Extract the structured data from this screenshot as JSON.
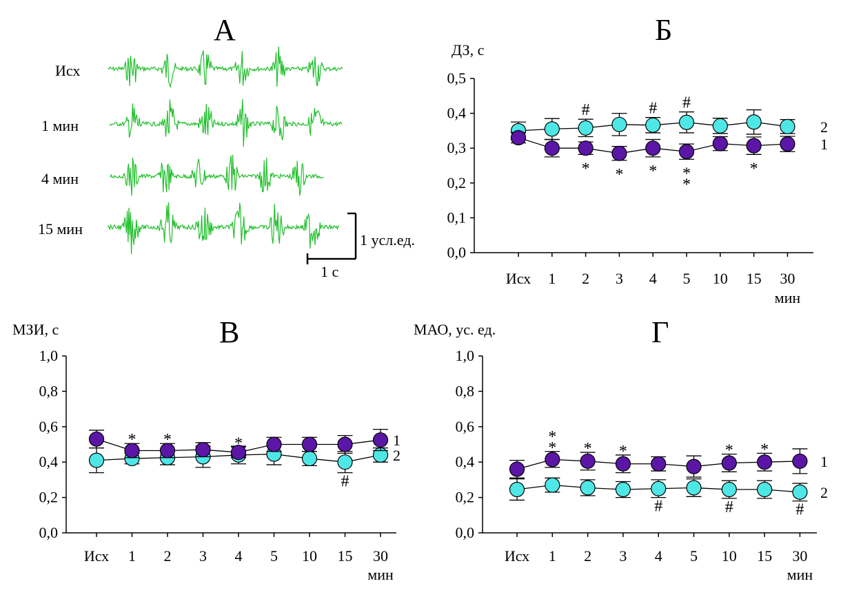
{
  "figure": {
    "panelA": {
      "letter": "А",
      "traces": [
        {
          "label": "Исх",
          "bursts": 6
        },
        {
          "label": "1 мин",
          "bursts": 6
        },
        {
          "label": "4 мин",
          "bursts": 6
        },
        {
          "label": "15 мин",
          "bursts": 6
        }
      ],
      "scale_y_label": "1 усл.ед.",
      "scale_x_label": "1 с",
      "trace_color": "#1fbf2a"
    }
  },
  "colors": {
    "series1": "#5b16a6",
    "series2": "#4fe6e6",
    "line": "#000000"
  },
  "chart_data": [
    {
      "id": "B",
      "letter": "Б",
      "type": "line",
      "ylabel": "ДЗ, с",
      "yticks": [
        "0,0",
        "0,1",
        "0,2",
        "0,3",
        "0,4",
        "0,5"
      ],
      "ylim": [
        0,
        0.5
      ],
      "categories": [
        "Исх",
        "1",
        "2",
        "3",
        "4",
        "5",
        "10",
        "15",
        "30"
      ],
      "xunit": "мин",
      "series": [
        {
          "name": "1",
          "values": [
            0.33,
            0.3,
            0.3,
            0.285,
            0.3,
            0.29,
            0.313,
            0.307,
            0.312
          ],
          "errors": [
            0.015,
            0.025,
            0.018,
            0.02,
            0.025,
            0.022,
            0.02,
            0.025,
            0.022
          ],
          "marks": [
            "",
            "",
            "*",
            "*",
            "*",
            "*\n*",
            "",
            "*",
            ""
          ],
          "mark_pos": "below"
        },
        {
          "name": "2",
          "values": [
            0.35,
            0.355,
            0.358,
            0.368,
            0.366,
            0.374,
            0.364,
            0.375,
            0.362
          ],
          "errors": [
            0.025,
            0.03,
            0.025,
            0.032,
            0.022,
            0.03,
            0.022,
            0.035,
            0.02
          ],
          "marks": [
            "",
            "",
            "#",
            "",
            "#",
            "#",
            "",
            "",
            ""
          ],
          "mark_pos": "above"
        }
      ]
    },
    {
      "id": "V",
      "letter": "В",
      "type": "line",
      "ylabel": "МЗИ, с",
      "yticks": [
        "0,0",
        "0,2",
        "0,4",
        "0,6",
        "0,8",
        "1,0"
      ],
      "ylim": [
        0,
        1.0
      ],
      "categories": [
        "Исх",
        "1",
        "2",
        "3",
        "4",
        "5",
        "10",
        "15",
        "30"
      ],
      "xunit": "мин",
      "series": [
        {
          "name": "1",
          "values": [
            0.53,
            0.465,
            0.465,
            0.47,
            0.455,
            0.5,
            0.5,
            0.5,
            0.525
          ],
          "errors": [
            0.05,
            0.04,
            0.04,
            0.04,
            0.03,
            0.04,
            0.04,
            0.05,
            0.06
          ],
          "marks": [
            "",
            "*",
            "*",
            "",
            "*",
            "",
            "",
            "",
            ""
          ],
          "mark_pos": "above"
        },
        {
          "name": "2",
          "values": [
            0.41,
            0.42,
            0.425,
            0.43,
            0.44,
            0.445,
            0.42,
            0.4,
            0.44
          ],
          "errors": [
            0.07,
            0.03,
            0.04,
            0.06,
            0.05,
            0.06,
            0.04,
            0.06,
            0.04
          ],
          "marks": [
            "",
            "",
            "",
            "",
            "",
            "",
            "",
            "#",
            ""
          ],
          "mark_pos": "below"
        }
      ]
    },
    {
      "id": "G",
      "letter": "Г",
      "type": "line",
      "ylabel": "МАО, ус. ед.",
      "yticks": [
        "0,0",
        "0,2",
        "0,4",
        "0,6",
        "0,8",
        "1,0"
      ],
      "ylim": [
        0,
        1.0
      ],
      "categories": [
        "Исх",
        "1",
        "2",
        "3",
        "4",
        "5",
        "10",
        "15",
        "30"
      ],
      "xunit": "мин",
      "series": [
        {
          "name": "1",
          "values": [
            0.36,
            0.415,
            0.405,
            0.39,
            0.39,
            0.375,
            0.395,
            0.4,
            0.405
          ],
          "errors": [
            0.05,
            0.045,
            0.05,
            0.05,
            0.04,
            0.06,
            0.05,
            0.05,
            0.07
          ],
          "marks": [
            "",
            "*\n*",
            "*",
            "*",
            "",
            "",
            "*",
            "*",
            ""
          ],
          "mark_pos": "above"
        },
        {
          "name": "2",
          "values": [
            0.245,
            0.27,
            0.255,
            0.245,
            0.25,
            0.255,
            0.245,
            0.245,
            0.23
          ],
          "errors": [
            0.06,
            0.04,
            0.045,
            0.045,
            0.05,
            0.05,
            0.05,
            0.05,
            0.05
          ],
          "marks": [
            "",
            "",
            "",
            "",
            "#",
            "",
            "#",
            "",
            "#"
          ],
          "mark_pos": "below"
        }
      ]
    }
  ]
}
